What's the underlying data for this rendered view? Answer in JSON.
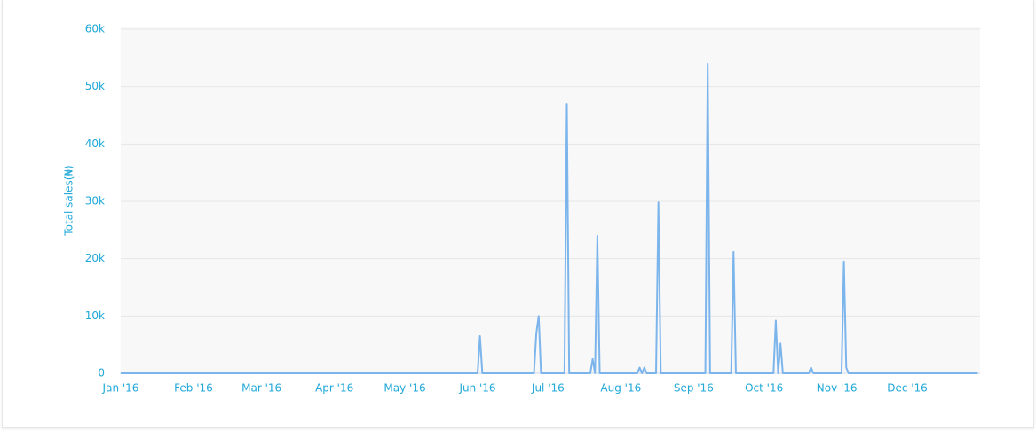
{
  "chart_data": {
    "type": "line",
    "y_label": "Total sales(₦)",
    "x": [
      0,
      152,
      153,
      154,
      176,
      177,
      178,
      179,
      189,
      190,
      191,
      200,
      201,
      202,
      203,
      204,
      220,
      221,
      222,
      223,
      224,
      228,
      229,
      230,
      249,
      250,
      251,
      260,
      261,
      262,
      278,
      279,
      280,
      281,
      282,
      293,
      294,
      295,
      307,
      308,
      309,
      310,
      365
    ],
    "series": [
      {
        "name": "Total sales",
        "color": "#7cb5ec",
        "values": [
          0,
          0,
          6500,
          0,
          0,
          7000,
          10000,
          0,
          0,
          47000,
          0,
          0,
          2500,
          0,
          24000,
          0,
          0,
          1000,
          0,
          1000,
          0,
          0,
          29800,
          0,
          0,
          54000,
          0,
          0,
          21200,
          0,
          0,
          9200,
          0,
          5200,
          0,
          0,
          1000,
          0,
          0,
          19500,
          1000,
          0,
          0
        ]
      }
    ],
    "xlim": [
      0,
      366
    ],
    "xticks": [
      {
        "value": 0,
        "label": "Jan '16"
      },
      {
        "value": 31,
        "label": "Feb '16"
      },
      {
        "value": 60,
        "label": "Mar '16"
      },
      {
        "value": 91,
        "label": "Apr '16"
      },
      {
        "value": 121,
        "label": "May '16"
      },
      {
        "value": 152,
        "label": "Jun '16"
      },
      {
        "value": 182,
        "label": "Jul '16"
      },
      {
        "value": 213,
        "label": "Aug '16"
      },
      {
        "value": 244,
        "label": "Sep '16"
      },
      {
        "value": 274,
        "label": "Oct '16"
      },
      {
        "value": 305,
        "label": "Nov '16"
      },
      {
        "value": 335,
        "label": "Dec '16"
      }
    ],
    "ylim": [
      0,
      60000
    ],
    "yticks": [
      0,
      {
        "value": 10000,
        "label": "10k"
      },
      {
        "value": 20000,
        "label": "20k"
      },
      {
        "value": 30000,
        "label": "30k"
      },
      {
        "value": 40000,
        "label": "40k"
      },
      {
        "value": 50000,
        "label": "50k"
      },
      {
        "value": 60000,
        "label": "60k"
      }
    ],
    "grid": true
  }
}
